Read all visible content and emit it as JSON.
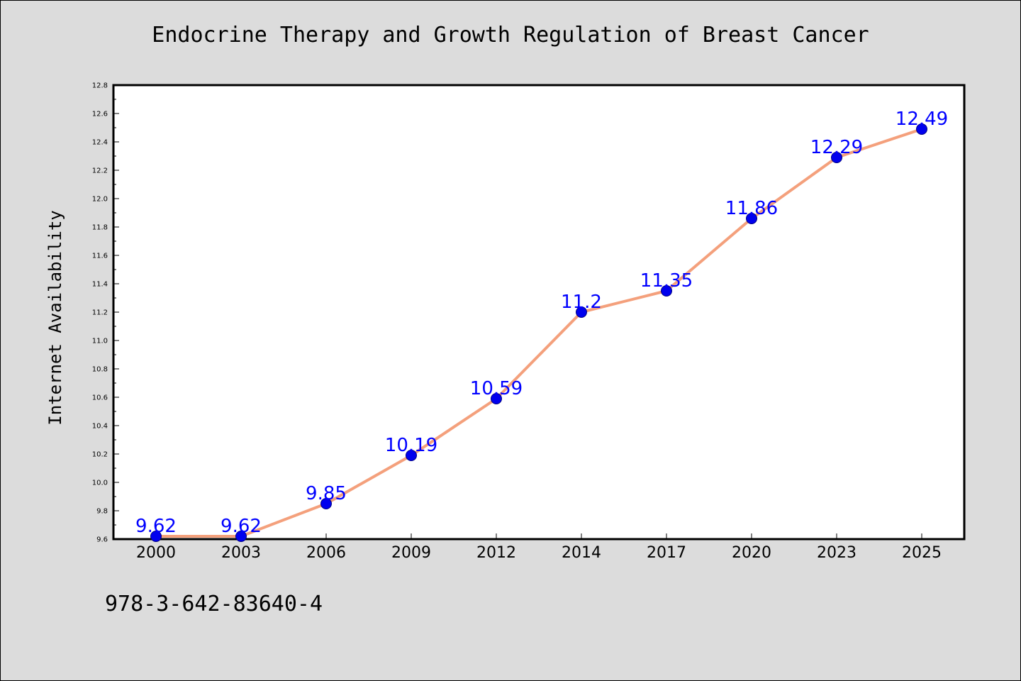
{
  "chart_data": {
    "type": "line",
    "title": "Endocrine Therapy and Growth Regulation of Breast Cancer",
    "xlabel": "",
    "ylabel": "Internet Availability",
    "categories": [
      "2000",
      "2003",
      "2006",
      "2009",
      "2012",
      "2014",
      "2017",
      "2020",
      "2023",
      "2025"
    ],
    "values": [
      9.62,
      9.62,
      9.85,
      10.19,
      10.59,
      11.2,
      11.35,
      11.86,
      12.29,
      12.49
    ],
    "data_labels": [
      "9.62",
      "9.62",
      "9.85",
      "10.19",
      "10.59",
      "11.2",
      "11.35",
      "11.86",
      "12.29",
      "12.49"
    ],
    "ylim": [
      9.6,
      12.8
    ],
    "yticks": [
      "9.6",
      "9.8",
      "10.0",
      "10.2",
      "10.4",
      "10.6",
      "10.8",
      "11.0",
      "11.2",
      "11.4",
      "11.6",
      "11.8",
      "12.0",
      "12.2",
      "12.4",
      "12.6",
      "12.8"
    ],
    "grid": false,
    "legend": "none",
    "colors": {
      "line": "#f4a07c",
      "marker_fill": "#0000ee",
      "marker_edge": "#000080",
      "data_label": "#0000ff",
      "background": "#dcdcdc",
      "plot_background": "#ffffff"
    }
  },
  "footer": {
    "isbn": "978-3-642-83640-4"
  }
}
